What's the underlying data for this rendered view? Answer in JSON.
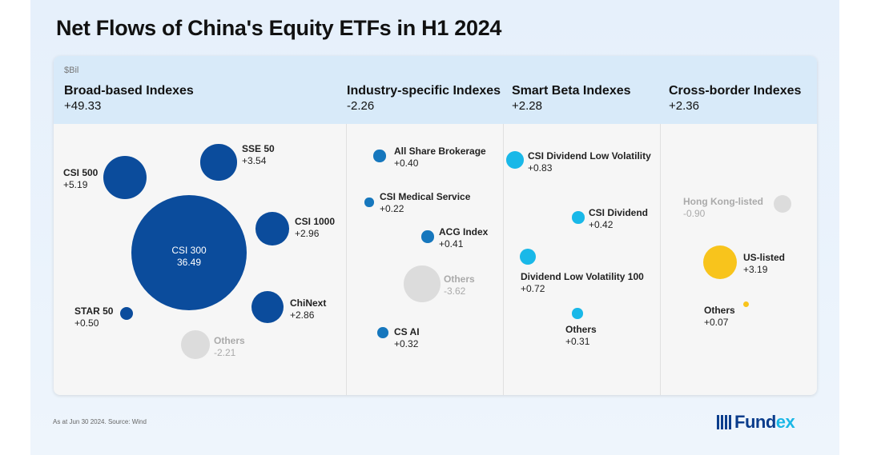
{
  "title": "Net Flows of China's Equity ETFs in H1 2024",
  "unit": "$Bil",
  "footnote": "As at Jun 30 2024. Source: Wind",
  "logo": {
    "main": "Fund",
    "accent": "ex"
  },
  "colors": {
    "broad": "#0b4c9c",
    "industry": "#1677bd",
    "smart": "#19b8e8",
    "us": "#f8c41c",
    "others": "#dcdcdc"
  },
  "chart_data": {
    "type": "bubble",
    "groups": [
      {
        "name": "Broad-based Indexes",
        "total": "+49.33",
        "items": [
          {
            "name": "CSI 500",
            "value": "+5.19"
          },
          {
            "name": "SSE 50",
            "value": "+3.54"
          },
          {
            "name": "CSI 300",
            "value": "36.49"
          },
          {
            "name": "CSI 1000",
            "value": "+2.96"
          },
          {
            "name": "ChiNext",
            "value": "+2.86"
          },
          {
            "name": "STAR 50",
            "value": "+0.50"
          },
          {
            "name": "Others",
            "value": "-2.21"
          }
        ]
      },
      {
        "name": "Industry-specific Indexes",
        "total": "-2.26",
        "items": [
          {
            "name": "All Share Brokerage",
            "value": "+0.40"
          },
          {
            "name": "CSI Medical Service",
            "value": "+0.22"
          },
          {
            "name": "ACG Index",
            "value": "+0.41"
          },
          {
            "name": "Others",
            "value": "-3.62"
          },
          {
            "name": "CS AI",
            "value": "+0.32"
          }
        ]
      },
      {
        "name": "Smart Beta Indexes",
        "total": "+2.28",
        "items": [
          {
            "name": "CSI Dividend Low Volatility",
            "value": "+0.83"
          },
          {
            "name": "CSI Dividend",
            "value": "+0.42"
          },
          {
            "name": "Dividend Low Volatility 100",
            "value": "+0.72"
          },
          {
            "name": "Others",
            "value": "+0.31"
          }
        ]
      },
      {
        "name": "Cross-border Indexes",
        "total": "+2.36",
        "items": [
          {
            "name": "Hong Kong-listed",
            "value": "-0.90"
          },
          {
            "name": "US-listed",
            "value": "+3.19"
          },
          {
            "name": "Others",
            "value": "+0.07"
          }
        ]
      }
    ]
  }
}
